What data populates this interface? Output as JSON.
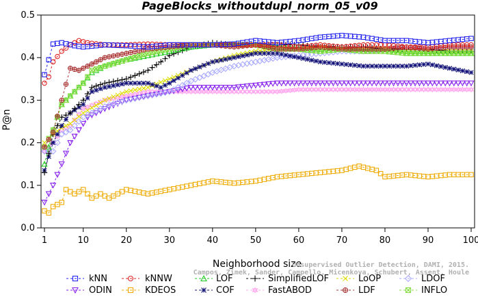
{
  "chart_data": {
    "type": "line",
    "title": "PageBlocks_withoutdupl_norm_05_v09",
    "xlabel": "Neighborhood size",
    "ylabel": "P@n",
    "xlim": [
      1,
      100
    ],
    "ylim": [
      0,
      0.5
    ],
    "xticks": [
      1,
      10,
      20,
      30,
      40,
      50,
      60,
      70,
      80,
      90,
      100
    ],
    "yticks": [
      0.0,
      0.1,
      0.2,
      0.3,
      0.4,
      0.5
    ],
    "grid": false,
    "legend_position": "bottom",
    "credit_lines": [
      "Unsupervised Outlier Detection, DAMI, 2015.",
      "Campos, Zimek, Sander, Campello, Micenkova, Schubert, Assent, Houle"
    ],
    "series": [
      {
        "name": "kNN",
        "color": "#2222ee",
        "marker": "square",
        "dash": "3,3",
        "points": [
          [
            1,
            0.36
          ],
          [
            2,
            0.395
          ],
          [
            3,
            0.432
          ],
          [
            5,
            0.435
          ],
          [
            8,
            0.428
          ],
          [
            10,
            0.425
          ],
          [
            15,
            0.43
          ],
          [
            20,
            0.428
          ],
          [
            25,
            0.425
          ],
          [
            30,
            0.43
          ],
          [
            35,
            0.43
          ],
          [
            40,
            0.43
          ],
          [
            45,
            0.432
          ],
          [
            50,
            0.44
          ],
          [
            55,
            0.435
          ],
          [
            60,
            0.44
          ],
          [
            65,
            0.448
          ],
          [
            70,
            0.452
          ],
          [
            75,
            0.448
          ],
          [
            80,
            0.44
          ],
          [
            85,
            0.44
          ],
          [
            90,
            0.435
          ],
          [
            95,
            0.44
          ],
          [
            100,
            0.445
          ]
        ]
      },
      {
        "name": "kNNW",
        "color": "#dd2222",
        "marker": "circle",
        "dash": "3,3",
        "points": [
          [
            1,
            0.34
          ],
          [
            2,
            0.355
          ],
          [
            3,
            0.39
          ],
          [
            5,
            0.415
          ],
          [
            7,
            0.43
          ],
          [
            9,
            0.44
          ],
          [
            11,
            0.435
          ],
          [
            15,
            0.43
          ],
          [
            20,
            0.43
          ],
          [
            25,
            0.432
          ],
          [
            30,
            0.43
          ],
          [
            35,
            0.43
          ],
          [
            40,
            0.43
          ],
          [
            45,
            0.43
          ],
          [
            50,
            0.43
          ],
          [
            55,
            0.43
          ],
          [
            60,
            0.425
          ],
          [
            65,
            0.43
          ],
          [
            70,
            0.425
          ],
          [
            75,
            0.43
          ],
          [
            80,
            0.43
          ],
          [
            85,
            0.425
          ],
          [
            90,
            0.425
          ],
          [
            95,
            0.43
          ],
          [
            100,
            0.43
          ]
        ]
      },
      {
        "name": "LOF",
        "color": "#22cc22",
        "marker": "triangle",
        "dash": "3,3",
        "points": [
          [
            1,
            0.15
          ],
          [
            3,
            0.23
          ],
          [
            5,
            0.29
          ],
          [
            7,
            0.31
          ],
          [
            10,
            0.34
          ],
          [
            12,
            0.365
          ],
          [
            15,
            0.38
          ],
          [
            20,
            0.395
          ],
          [
            25,
            0.405
          ],
          [
            30,
            0.415
          ],
          [
            35,
            0.425
          ],
          [
            40,
            0.43
          ],
          [
            45,
            0.43
          ],
          [
            50,
            0.43
          ],
          [
            55,
            0.425
          ],
          [
            60,
            0.42
          ],
          [
            65,
            0.415
          ],
          [
            70,
            0.42
          ],
          [
            75,
            0.415
          ],
          [
            80,
            0.415
          ],
          [
            85,
            0.41
          ],
          [
            90,
            0.41
          ],
          [
            95,
            0.41
          ],
          [
            100,
            0.41
          ]
        ]
      },
      {
        "name": "SimplifiedLOF",
        "color": "#000000",
        "marker": "plus",
        "dash": "3,3",
        "points": [
          [
            1,
            0.13
          ],
          [
            3,
            0.22
          ],
          [
            5,
            0.26
          ],
          [
            7,
            0.27
          ],
          [
            10,
            0.3
          ],
          [
            12,
            0.33
          ],
          [
            15,
            0.34
          ],
          [
            20,
            0.35
          ],
          [
            25,
            0.37
          ],
          [
            28,
            0.39
          ],
          [
            30,
            0.405
          ],
          [
            35,
            0.425
          ],
          [
            40,
            0.435
          ],
          [
            45,
            0.43
          ],
          [
            50,
            0.43
          ],
          [
            55,
            0.43
          ],
          [
            60,
            0.43
          ],
          [
            65,
            0.425
          ],
          [
            70,
            0.425
          ],
          [
            75,
            0.425
          ],
          [
            80,
            0.42
          ],
          [
            85,
            0.42
          ],
          [
            90,
            0.42
          ],
          [
            95,
            0.415
          ],
          [
            100,
            0.415
          ]
        ]
      },
      {
        "name": "LoOP",
        "color": "#dddd00",
        "marker": "x",
        "dash": "3,3",
        "points": [
          [
            1,
            0.2
          ],
          [
            3,
            0.22
          ],
          [
            5,
            0.235
          ],
          [
            7,
            0.245
          ],
          [
            10,
            0.27
          ],
          [
            15,
            0.3
          ],
          [
            20,
            0.32
          ],
          [
            25,
            0.33
          ],
          [
            30,
            0.35
          ],
          [
            35,
            0.37
          ],
          [
            40,
            0.39
          ],
          [
            45,
            0.405
          ],
          [
            50,
            0.415
          ],
          [
            55,
            0.42
          ],
          [
            60,
            0.42
          ],
          [
            65,
            0.425
          ],
          [
            70,
            0.42
          ],
          [
            75,
            0.42
          ],
          [
            80,
            0.42
          ],
          [
            85,
            0.415
          ],
          [
            90,
            0.415
          ],
          [
            95,
            0.415
          ],
          [
            100,
            0.415
          ]
        ]
      },
      {
        "name": "LDOF",
        "color": "#aaaaff",
        "marker": "diamond",
        "dash": "3,3",
        "points": [
          [
            1,
            0.18
          ],
          [
            3,
            0.18
          ],
          [
            5,
            0.22
          ],
          [
            7,
            0.23
          ],
          [
            10,
            0.26
          ],
          [
            15,
            0.285
          ],
          [
            20,
            0.3
          ],
          [
            25,
            0.31
          ],
          [
            30,
            0.32
          ],
          [
            35,
            0.345
          ],
          [
            40,
            0.365
          ],
          [
            45,
            0.38
          ],
          [
            50,
            0.39
          ],
          [
            55,
            0.4
          ],
          [
            60,
            0.405
          ],
          [
            65,
            0.41
          ],
          [
            70,
            0.415
          ],
          [
            75,
            0.415
          ],
          [
            80,
            0.42
          ],
          [
            85,
            0.42
          ],
          [
            90,
            0.42
          ],
          [
            95,
            0.42
          ],
          [
            100,
            0.42
          ]
        ]
      },
      {
        "name": "ODIN",
        "color": "#8822ee",
        "marker": "triangle-down",
        "dash": "3,3",
        "points": [
          [
            1,
            0.06
          ],
          [
            2,
            0.08
          ],
          [
            3,
            0.1
          ],
          [
            5,
            0.15
          ],
          [
            7,
            0.2
          ],
          [
            9,
            0.23
          ],
          [
            11,
            0.26
          ],
          [
            15,
            0.28
          ],
          [
            20,
            0.3
          ],
          [
            25,
            0.31
          ],
          [
            30,
            0.32
          ],
          [
            35,
            0.33
          ],
          [
            40,
            0.33
          ],
          [
            45,
            0.33
          ],
          [
            50,
            0.335
          ],
          [
            55,
            0.34
          ],
          [
            60,
            0.34
          ],
          [
            65,
            0.34
          ],
          [
            70,
            0.34
          ],
          [
            75,
            0.34
          ],
          [
            80,
            0.34
          ],
          [
            85,
            0.34
          ],
          [
            90,
            0.34
          ],
          [
            95,
            0.34
          ],
          [
            100,
            0.34
          ]
        ]
      },
      {
        "name": "KDEOS",
        "color": "#eeaa00",
        "marker": "square",
        "dash": "3,3",
        "points": [
          [
            1,
            0.04
          ],
          [
            2,
            0.035
          ],
          [
            3,
            0.05
          ],
          [
            5,
            0.06
          ],
          [
            6,
            0.09
          ],
          [
            8,
            0.08
          ],
          [
            10,
            0.09
          ],
          [
            12,
            0.07
          ],
          [
            14,
            0.08
          ],
          [
            16,
            0.07
          ],
          [
            18,
            0.08
          ],
          [
            20,
            0.09
          ],
          [
            25,
            0.08
          ],
          [
            30,
            0.09
          ],
          [
            35,
            0.1
          ],
          [
            40,
            0.11
          ],
          [
            45,
            0.105
          ],
          [
            50,
            0.11
          ],
          [
            55,
            0.12
          ],
          [
            60,
            0.125
          ],
          [
            65,
            0.13
          ],
          [
            70,
            0.135
          ],
          [
            74,
            0.145
          ],
          [
            78,
            0.135
          ],
          [
            80,
            0.12
          ],
          [
            85,
            0.125
          ],
          [
            90,
            0.12
          ],
          [
            95,
            0.125
          ],
          [
            100,
            0.125
          ]
        ]
      },
      {
        "name": "LDF",
        "color": "#aa3333",
        "marker": "circle-plus",
        "dash": "3,3",
        "points": [
          [
            1,
            0.19
          ],
          [
            3,
            0.225
          ],
          [
            5,
            0.3
          ],
          [
            7,
            0.375
          ],
          [
            9,
            0.37
          ],
          [
            11,
            0.38
          ],
          [
            13,
            0.39
          ],
          [
            15,
            0.4
          ],
          [
            20,
            0.41
          ],
          [
            25,
            0.42
          ],
          [
            30,
            0.425
          ],
          [
            35,
            0.43
          ],
          [
            40,
            0.43
          ],
          [
            45,
            0.425
          ],
          [
            50,
            0.43
          ],
          [
            55,
            0.42
          ],
          [
            60,
            0.42
          ],
          [
            65,
            0.425
          ],
          [
            70,
            0.42
          ],
          [
            75,
            0.42
          ],
          [
            80,
            0.42
          ],
          [
            85,
            0.425
          ],
          [
            90,
            0.42
          ],
          [
            95,
            0.425
          ],
          [
            100,
            0.425
          ]
        ]
      },
      {
        "name": "COF",
        "color": "#111177",
        "marker": "asterisk",
        "dash": "3,3",
        "points": [
          [
            1,
            0.135
          ],
          [
            3,
            0.2
          ],
          [
            5,
            0.24
          ],
          [
            7,
            0.27
          ],
          [
            10,
            0.29
          ],
          [
            12,
            0.32
          ],
          [
            15,
            0.33
          ],
          [
            20,
            0.34
          ],
          [
            25,
            0.34
          ],
          [
            28,
            0.33
          ],
          [
            30,
            0.34
          ],
          [
            35,
            0.37
          ],
          [
            40,
            0.39
          ],
          [
            45,
            0.4
          ],
          [
            50,
            0.41
          ],
          [
            55,
            0.41
          ],
          [
            60,
            0.4
          ],
          [
            65,
            0.39
          ],
          [
            70,
            0.385
          ],
          [
            75,
            0.38
          ],
          [
            80,
            0.38
          ],
          [
            85,
            0.38
          ],
          [
            90,
            0.385
          ],
          [
            95,
            0.375
          ],
          [
            100,
            0.365
          ]
        ]
      },
      {
        "name": "FastABOD",
        "color": "#ffaaee",
        "marker": "triangle-double",
        "dash": "3,3",
        "points": [
          [
            1,
            0.18
          ],
          [
            3,
            0.2
          ],
          [
            5,
            0.23
          ],
          [
            7,
            0.24
          ],
          [
            10,
            0.28
          ],
          [
            15,
            0.3
          ],
          [
            20,
            0.31
          ],
          [
            25,
            0.32
          ],
          [
            30,
            0.32
          ],
          [
            35,
            0.32
          ],
          [
            40,
            0.32
          ],
          [
            45,
            0.32
          ],
          [
            50,
            0.32
          ],
          [
            55,
            0.32
          ],
          [
            60,
            0.325
          ],
          [
            65,
            0.325
          ],
          [
            70,
            0.325
          ],
          [
            75,
            0.325
          ],
          [
            80,
            0.325
          ],
          [
            85,
            0.325
          ],
          [
            90,
            0.325
          ],
          [
            95,
            0.325
          ],
          [
            100,
            0.325
          ]
        ]
      },
      {
        "name": "INFLO",
        "color": "#88dd44",
        "marker": "square-x",
        "dash": "3,3",
        "points": [
          [
            1,
            0.19
          ],
          [
            3,
            0.23
          ],
          [
            5,
            0.29
          ],
          [
            7,
            0.31
          ],
          [
            10,
            0.34
          ],
          [
            12,
            0.37
          ],
          [
            15,
            0.38
          ],
          [
            20,
            0.395
          ],
          [
            25,
            0.41
          ],
          [
            30,
            0.42
          ],
          [
            35,
            0.43
          ],
          [
            40,
            0.43
          ],
          [
            45,
            0.43
          ],
          [
            50,
            0.43
          ],
          [
            55,
            0.42
          ],
          [
            60,
            0.42
          ],
          [
            65,
            0.415
          ],
          [
            70,
            0.42
          ],
          [
            75,
            0.415
          ],
          [
            80,
            0.415
          ],
          [
            85,
            0.41
          ],
          [
            90,
            0.41
          ],
          [
            95,
            0.41
          ],
          [
            100,
            0.41
          ]
        ]
      }
    ],
    "legend_order": [
      "kNN",
      "kNNW",
      "LOF",
      "SimplifiedLOF",
      "LoOP",
      "LDOF",
      "ODIN",
      "KDEOS",
      "COF",
      "FastABOD",
      "LDF",
      "INFLO"
    ]
  }
}
